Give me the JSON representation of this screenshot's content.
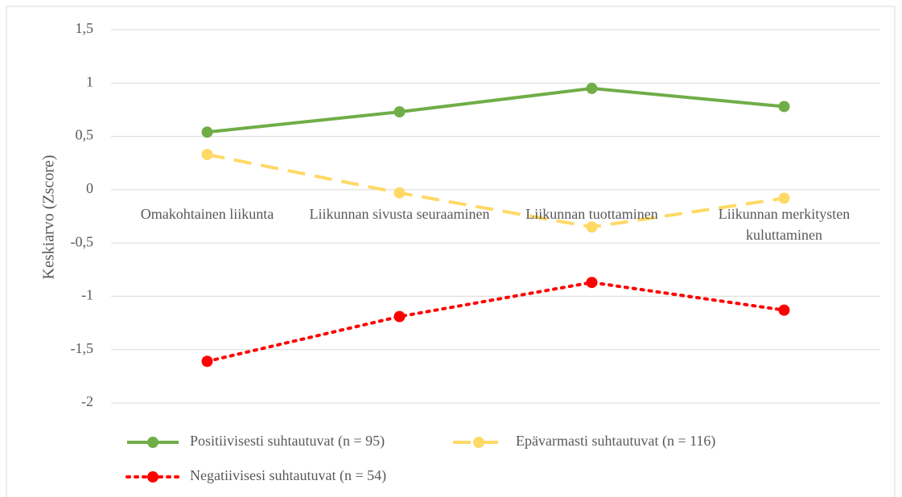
{
  "chart_data": {
    "type": "line",
    "y_label": "Keskiarvo (Zscore)",
    "categories": [
      "Omakohtainen liikunta",
      "Liikunnan sivusta seuraaminen",
      "Liikunnan tuottaminen",
      "Liikunnan merkitysten kuluttaminen"
    ],
    "series": [
      {
        "name": "Positiivisesti suhtautuvat (n = 95)",
        "color": "#70ad47",
        "line_style": "solid",
        "values": [
          0.54,
          0.73,
          0.95,
          0.78
        ]
      },
      {
        "name": "Epävarmasti suhtautuvat (n = 116)",
        "color": "#ffd966",
        "line_style": "dashed",
        "values": [
          0.33,
          -0.03,
          -0.35,
          -0.08
        ]
      },
      {
        "name": "Negatiivisesi suhtautuvat (n = 54)",
        "color": "#ff0000",
        "line_style": "dotted",
        "values": [
          -1.61,
          -1.19,
          -0.87,
          -1.13
        ]
      }
    ],
    "ylim": [
      -2,
      1.5
    ],
    "yticks": [
      {
        "value": 1.5,
        "label": "1,5"
      },
      1,
      {
        "value": 0.5,
        "label": "0,5"
      },
      0,
      {
        "value": -0.5,
        "label": "-0,5"
      },
      -1,
      {
        "value": -1.5,
        "label": "-1,5"
      },
      -2
    ],
    "grid": true,
    "legend": "bottom"
  }
}
